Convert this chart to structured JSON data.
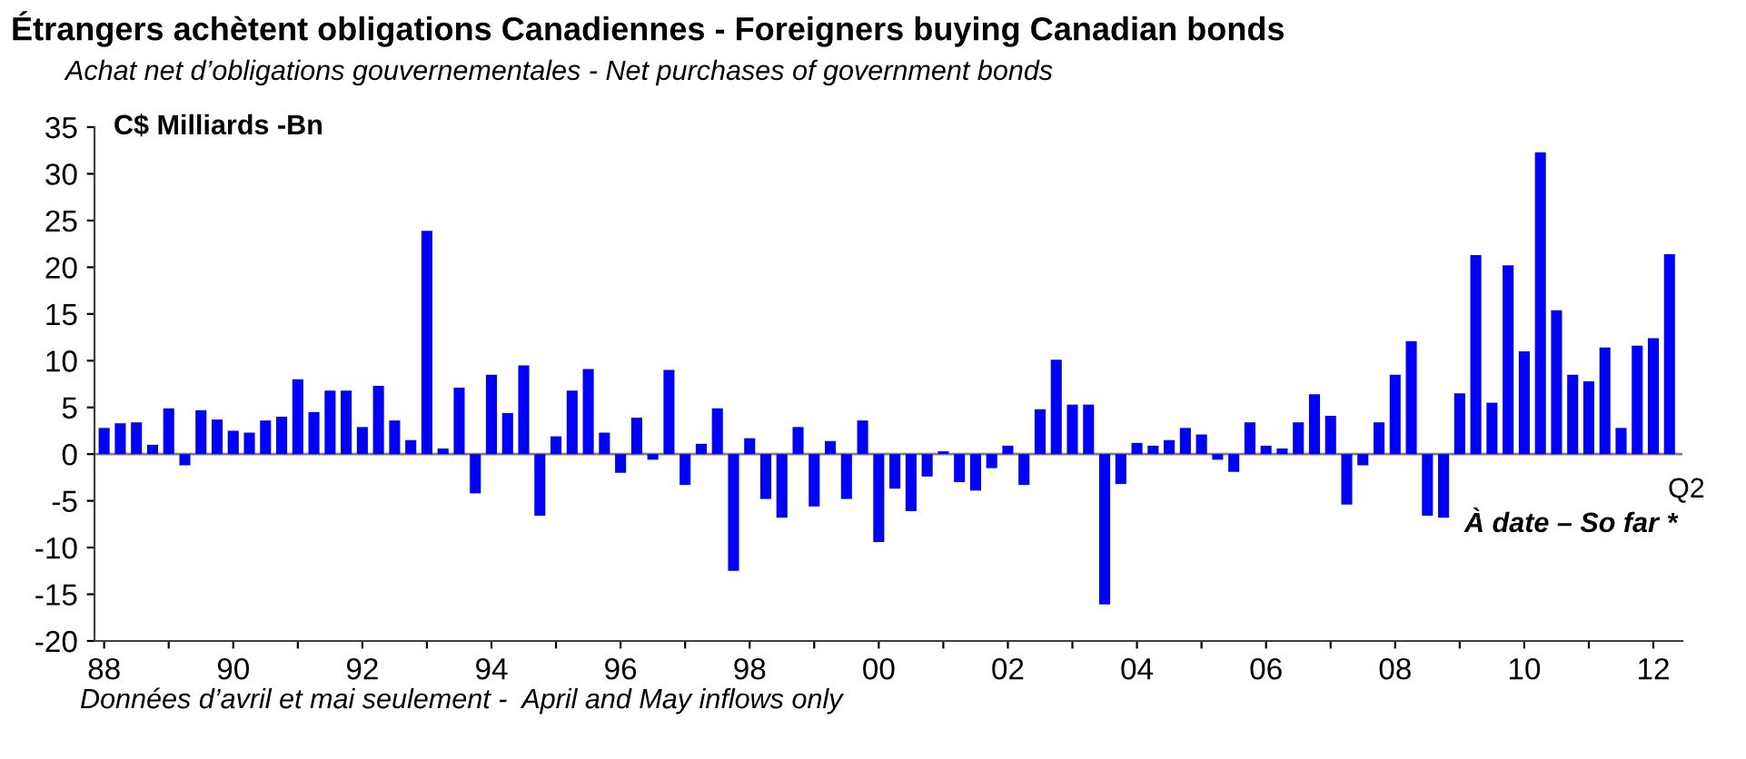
{
  "chart_data": {
    "type": "bar",
    "title": "Étrangers achètent obligations Canadiennes - Foreigners buying Canadian bonds",
    "subtitle": "Achat net d’obligations gouvernementales - Net purchases of government bonds",
    "ylabel": "C$ Milliards -Bn",
    "annotations": [
      "Q2",
      "À date – So far *",
      "Données d’avril et mai seulement -  April and May inflows only"
    ],
    "x": [
      1988,
      1988.25,
      1988.5,
      1988.75,
      1989,
      1989.25,
      1989.5,
      1989.75,
      1990,
      1990.25,
      1990.5,
      1990.75,
      1991,
      1991.25,
      1991.5,
      1991.75,
      1992,
      1992.25,
      1992.5,
      1992.75,
      1993,
      1993.25,
      1993.5,
      1993.75,
      1994,
      1994.25,
      1994.5,
      1994.75,
      1995,
      1995.25,
      1995.5,
      1995.75,
      1996,
      1996.25,
      1996.5,
      1996.75,
      1997,
      1997.25,
      1997.5,
      1997.75,
      1998,
      1998.25,
      1998.5,
      1998.75,
      1999,
      1999.25,
      1999.5,
      1999.75,
      2000,
      2000.25,
      2000.5,
      2000.75,
      2001,
      2001.25,
      2001.5,
      2001.75,
      2002,
      2002.25,
      2002.5,
      2002.75,
      2003,
      2003.25,
      2003.5,
      2003.75,
      2004,
      2004.25,
      2004.5,
      2004.75,
      2005,
      2005.25,
      2005.5,
      2005.75,
      2006,
      2006.25,
      2006.5,
      2006.75,
      2007,
      2007.25,
      2007.5,
      2007.75,
      2008,
      2008.25,
      2008.5,
      2008.75,
      2009,
      2009.25,
      2009.5,
      2009.75,
      2010,
      2010.25,
      2010.5,
      2010.75,
      2011,
      2011.25,
      2011.5,
      2011.75,
      2012,
      2012.25
    ],
    "values": [
      2.8,
      3.3,
      3.4,
      1.0,
      4.9,
      -1.2,
      4.7,
      3.7,
      2.5,
      2.3,
      3.6,
      4.0,
      8.0,
      4.5,
      6.8,
      6.8,
      2.9,
      7.3,
      3.6,
      1.5,
      23.9,
      0.6,
      7.1,
      -4.2,
      8.5,
      4.4,
      9.5,
      -6.6,
      1.9,
      6.8,
      9.1,
      2.3,
      -2.0,
      3.9,
      -0.6,
      9.0,
      -3.3,
      1.1,
      4.9,
      -12.5,
      1.7,
      -4.8,
      -6.8,
      2.9,
      -5.6,
      1.4,
      -4.8,
      3.6,
      -9.4,
      -3.7,
      -6.1,
      -2.4,
      0.3,
      -3.0,
      -3.9,
      -1.5,
      0.9,
      -3.3,
      4.8,
      10.1,
      5.3,
      5.3,
      -16.1,
      -3.2,
      1.2,
      0.9,
      1.5,
      2.8,
      2.1,
      -0.6,
      -1.9,
      3.4,
      0.9,
      0.6,
      3.4,
      6.4,
      4.1,
      -5.4,
      -1.2,
      3.4,
      8.5,
      12.1,
      -6.6,
      -6.8,
      6.5,
      21.3,
      5.5,
      20.2,
      11.0,
      32.3,
      15.4,
      8.5,
      7.8,
      11.4,
      2.8,
      11.6,
      12.4,
      21.4
    ],
    "color": "#0000ff",
    "xlim": [
      1987.85,
      2012.45
    ],
    "xticks": [
      {
        "value": 1988,
        "label": "88"
      },
      {
        "value": 1989,
        "label": null
      },
      {
        "value": 1990,
        "label": "90"
      },
      {
        "value": 1991,
        "label": null
      },
      {
        "value": 1992,
        "label": "92"
      },
      {
        "value": 1993,
        "label": null
      },
      {
        "value": 1994,
        "label": "94"
      },
      {
        "value": 1995,
        "label": null
      },
      {
        "value": 1996,
        "label": "96"
      },
      {
        "value": 1997,
        "label": null
      },
      {
        "value": 1998,
        "label": "98"
      },
      {
        "value": 1999,
        "label": null
      },
      {
        "value": 2000,
        "label": "00"
      },
      {
        "value": 2001,
        "label": null
      },
      {
        "value": 2002,
        "label": "02"
      },
      {
        "value": 2003,
        "label": null
      },
      {
        "value": 2004,
        "label": "04"
      },
      {
        "value": 2005,
        "label": null
      },
      {
        "value": 2006,
        "label": "06"
      },
      {
        "value": 2007,
        "label": null
      },
      {
        "value": 2008,
        "label": "08"
      },
      {
        "value": 2009,
        "label": null
      },
      {
        "value": 2010,
        "label": "10"
      },
      {
        "value": 2011,
        "label": null
      },
      {
        "value": 2012,
        "label": "12"
      }
    ],
    "ylim": [
      -20,
      35
    ],
    "yticks": [
      -20,
      -15,
      -10,
      -5,
      0,
      5,
      10,
      15,
      20,
      25,
      30,
      35
    ],
    "ref_lines": [
      {
        "axis": "y",
        "value": 0,
        "color": "#808080"
      }
    ],
    "grid": false,
    "legend": false
  }
}
